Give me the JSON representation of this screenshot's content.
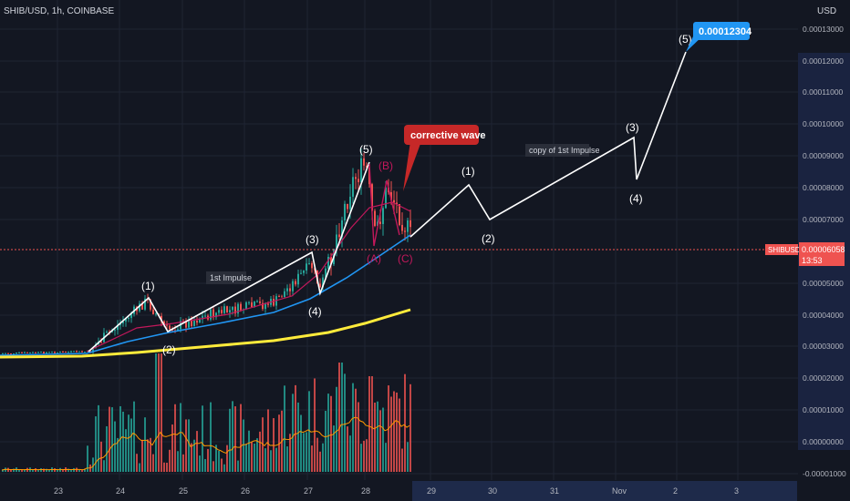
{
  "header": {
    "symbol_line": "SHIB/USD, 1h, COINBASE",
    "currency": "USD"
  },
  "price_axis": {
    "labels": [
      "0.00013000",
      "0.00012000",
      "0.00011000",
      "0.00010000",
      "0.00009000",
      "0.00008000",
      "0.00007000",
      "0.00005000",
      "0.00004000",
      "0.00003000",
      "0.00002000",
      "0.00001000",
      "0.00000000",
      "-0.00001000"
    ]
  },
  "time_axis": {
    "labels": [
      "23",
      "24",
      "25",
      "26",
      "27",
      "28",
      "29",
      "30",
      "31",
      "Nov",
      "2",
      "3"
    ]
  },
  "current_price": {
    "symbol": "SHIBUSD",
    "value": "0.00006058",
    "countdown": "13:53"
  },
  "target_price": {
    "value": "0.00012304"
  },
  "annotations": {
    "corrective_wave": "corrective wave",
    "first_impulse": "1st Impulse",
    "copy_impulse": "copy of 1st Impulse"
  },
  "wave_labels": {
    "w1": "(1)",
    "w2": "(2)",
    "w3": "(3)",
    "w4": "(4)",
    "w5": "(5)",
    "B": "(B)",
    "A": "(A)",
    "C": "(C)",
    "p1": "(1)",
    "p2": "(2)",
    "p3": "(3)",
    "p4": "(4)",
    "p5": "(5)"
  },
  "colors": {
    "background": "#131722",
    "up": "#26a69a",
    "down": "#ef5350",
    "ema_blue": "#2196f3",
    "ema_red": "#c2185b",
    "sma_yellow": "#ffeb3b",
    "volume_ma": "#ff9800",
    "projection": "#ffffff",
    "target_badge": "#2196f3",
    "corrective_box": "#c62828"
  },
  "chart_data": {
    "type": "candlestick",
    "x_unit": "date (Oct–Nov, 1h bars)",
    "ylim": [
      -1e-05,
      0.000135
    ],
    "impulse_wave": [
      {
        "label": "start",
        "price": 3e-05
      },
      {
        "label": "(1)",
        "price": 4.58e-05
      },
      {
        "label": "(2)",
        "price": 3.52e-05
      },
      {
        "label": "(3)",
        "price": 5.7e-05
      },
      {
        "label": "(4)",
        "price": 4.85e-05
      },
      {
        "label": "(5)",
        "price": 8.8e-05
      }
    ],
    "projection_wave": [
      {
        "label": "start",
        "price": 6e-05
      },
      {
        "label": "(1)",
        "price": 8.15e-05
      },
      {
        "label": "(2)",
        "price": 7e-05
      },
      {
        "label": "(3)",
        "price": 9.65e-05
      },
      {
        "label": "(4)",
        "price": 8.25e-05
      },
      {
        "label": "(5)",
        "price": 0.00012304
      }
    ],
    "last_price": 6.058e-05
  }
}
